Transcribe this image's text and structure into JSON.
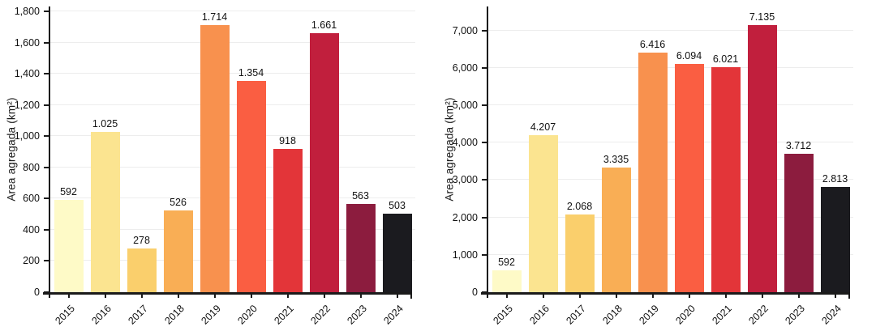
{
  "figure": {
    "background": "#ffffff"
  },
  "style": {
    "axis_color": "#1a1a1a",
    "grid_color": "#ededed",
    "label_color": "#111111"
  },
  "chart_data": [
    {
      "id": "left-chart",
      "type": "bar",
      "title": "",
      "xlabel": "",
      "ylabel": "Area agregada (km²)",
      "categories": [
        "2015",
        "2016",
        "2017",
        "2018",
        "2019",
        "2020",
        "2021",
        "2022",
        "2023",
        "2024"
      ],
      "values": [
        592,
        1025,
        278,
        526,
        1714,
        1354,
        918,
        1661,
        563,
        503
      ],
      "bar_labels": [
        "592",
        "1.025",
        "278",
        "526",
        "1.714",
        "1.354",
        "918",
        "1.661",
        "563",
        "503"
      ],
      "ylim": [
        0,
        1800
      ],
      "ytick_values": [
        0,
        200,
        400,
        600,
        800,
        1000,
        1200,
        1400,
        1600,
        1800
      ],
      "ytick_labels": [
        "0",
        "200",
        "400",
        "600",
        "800",
        "1,000",
        "1,200",
        "1,400",
        "1,600",
        "1,800"
      ],
      "grid": true,
      "legend": "none",
      "plot_top_value": 1831,
      "bar_colors": [
        "#FEFAC7",
        "#FBE490",
        "#FACF6C",
        "#F9AE55",
        "#F8914E",
        "#FA5E42",
        "#E33539",
        "#C11F3D",
        "#8C1C3E",
        "#1B1B1F"
      ]
    },
    {
      "id": "right-chart",
      "type": "bar",
      "title": "",
      "xlabel": "",
      "ylabel": "Area agregada (km²)",
      "categories": [
        "2015",
        "2016",
        "2017",
        "2018",
        "2019",
        "2020",
        "2021",
        "2022",
        "2023",
        "2024"
      ],
      "values": [
        592,
        4207,
        2068,
        3335,
        6416,
        6094,
        6021,
        7135,
        3712,
        2813
      ],
      "bar_labels": [
        "592",
        "4.207",
        "2.068",
        "3.335",
        "6.416",
        "6.094",
        "6.021",
        "7.135",
        "3.712",
        "2.813"
      ],
      "ylim": [
        0,
        7000
      ],
      "ytick_values": [
        0,
        1000,
        2000,
        3000,
        4000,
        5000,
        6000,
        7000
      ],
      "ytick_labels": [
        "0",
        "1,000",
        "2,000",
        "3,000",
        "4,000",
        "5,000",
        "6,000",
        "7,000"
      ],
      "grid": true,
      "legend": "none",
      "plot_top_value": 7640,
      "bar_colors": [
        "#FEFAC7",
        "#FBE490",
        "#FACF6C",
        "#F9AE55",
        "#F8914E",
        "#FA5E42",
        "#E33539",
        "#C11F3D",
        "#8C1C3E",
        "#1B1B1F"
      ]
    }
  ]
}
